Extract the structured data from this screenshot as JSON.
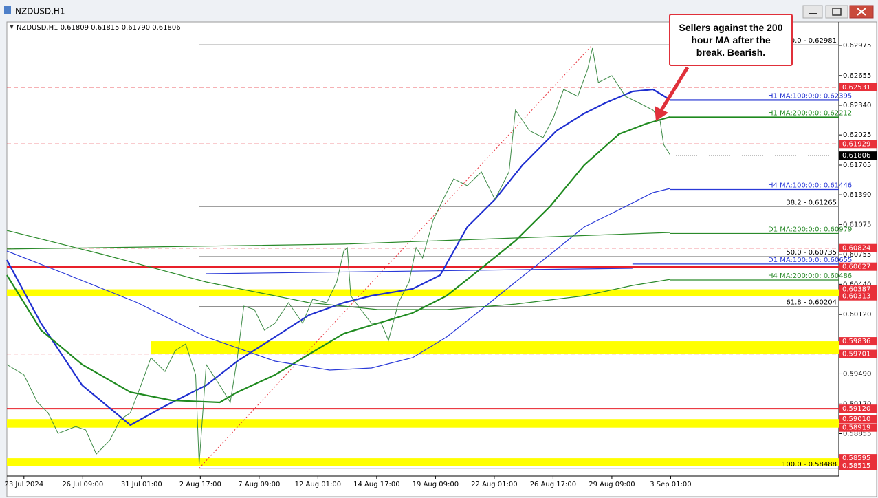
{
  "window": {
    "title": "NZDUSD,H1"
  },
  "chart_data": {
    "type": "line",
    "header": "NZDUSD,H1  0.61809 0.61815 0.61790 0.61806",
    "annotation": "Sellers against the 200 hour MA after the break.  Bearish.",
    "xlim": [
      -0.29,
      13.86
    ],
    "ylim": [
      0.58406,
      0.63223
    ],
    "xticks": [
      {
        "value": 0,
        "label": "23 Jul 2024"
      },
      {
        "value": 1,
        "label": "26 Jul 09:00"
      },
      {
        "value": 2,
        "label": "31 Jul 01:00"
      },
      {
        "value": 3,
        "label": "2 Aug 17:00"
      },
      {
        "value": 4,
        "label": "7 Aug 09:00"
      },
      {
        "value": 5,
        "label": "12 Aug 01:00"
      },
      {
        "value": 6,
        "label": "14 Aug 17:00"
      },
      {
        "value": 7,
        "label": "19 Aug 09:00"
      },
      {
        "value": 8,
        "label": "22 Aug 01:00"
      },
      {
        "value": 9,
        "label": "26 Aug 17:00"
      },
      {
        "value": 10,
        "label": "29 Aug 09:00"
      },
      {
        "value": 11,
        "label": "3 Sep 01:00"
      }
    ],
    "yticks": [
      0.62975,
      0.62655,
      {
        "value": 0.6234,
        "label": "0.62340"
      },
      0.62025,
      0.61705,
      {
        "value": 0.6139,
        "label": "0.61390"
      },
      0.61075,
      0.60755,
      {
        "value": 0.6044,
        "label": "0.60440"
      },
      {
        "value": 0.6012,
        "label": "0.60120"
      },
      {
        "value": 0.5949,
        "label": "0.59490"
      },
      {
        "value": 0.5917,
        "label": "0.59170"
      },
      0.58855
    ],
    "close": {
      "color": "#3d8a46",
      "x": [
        -0.29,
        0,
        0.23,
        0.41,
        0.58,
        0.88,
        1.05,
        1.23,
        1.46,
        1.64,
        1.81,
        1.99,
        2.16,
        2.4,
        2.57,
        2.75,
        2.92,
        2.98,
        3.1,
        3.33,
        3.51,
        3.63,
        3.74,
        3.92,
        4.09,
        4.27,
        4.5,
        4.74,
        4.91,
        5.15,
        5.32,
        5.44,
        5.5,
        5.56,
        5.73,
        5.91,
        6.08,
        6.2,
        6.37,
        6.55,
        6.67,
        6.78,
        6.96,
        7.13,
        7.31,
        7.54,
        7.78,
        8.01,
        8.25,
        8.36,
        8.6,
        8.83,
        9.01,
        9.18,
        9.42,
        9.59,
        9.67,
        9.77,
        10,
        10.23,
        10.47,
        10.7,
        10.82,
        10.88,
        10.99
      ],
      "values": [
        0.59588,
        0.59479,
        0.59187,
        0.59077,
        0.58858,
        0.58931,
        0.58895,
        0.58639,
        0.58785,
        0.59004,
        0.59077,
        0.59369,
        0.59661,
        0.59515,
        0.59734,
        0.59807,
        0.59479,
        0.5853,
        0.59588,
        0.59369,
        0.59187,
        0.59661,
        0.60209,
        0.60172,
        0.59953,
        0.60026,
        0.60245,
        0.60026,
        0.60282,
        0.60245,
        0.60464,
        0.60793,
        0.60829,
        0.60318,
        0.60172,
        0.60026,
        0.60026,
        0.59844,
        0.60245,
        0.60464,
        0.60829,
        0.6072,
        0.61121,
        0.6134,
        0.61559,
        0.61486,
        0.61632,
        0.6134,
        0.61632,
        0.62289,
        0.6207,
        0.61997,
        0.62216,
        0.62508,
        0.62435,
        0.62727,
        0.62946,
        0.62581,
        0.62654,
        0.62435,
        0.62362,
        0.62289,
        0.62179,
        0.61924,
        0.61814
      ]
    },
    "series": [
      {
        "name": "H1 MA:100:0:0: 0.62395",
        "last": 0.62395,
        "color": "#1f2fd0",
        "width": 2.2,
        "x": [
          -0.29,
          0.29,
          0.99,
          1.81,
          2.4,
          3.1,
          3.63,
          4.27,
          4.85,
          5.44,
          5.91,
          6.61,
          7.08,
          7.54,
          8.01,
          8.48,
          9.06,
          9.53,
          9.88,
          10.35,
          10.7,
          10.99
        ],
        "values": [
          0.60698,
          0.60026,
          0.59369,
          0.58946,
          0.5915,
          0.59369,
          0.59625,
          0.5988,
          0.60114,
          0.60245,
          0.60318,
          0.60391,
          0.60537,
          0.61048,
          0.6134,
          0.61705,
          0.6207,
          0.62252,
          0.62362,
          0.62486,
          0.62508,
          0.62398
        ]
      },
      {
        "name": "H1 MA:200:0:0: 0.62212",
        "last": 0.62212,
        "color": "#1f8a1f",
        "width": 2.2,
        "x": [
          -0.29,
          0.29,
          0.99,
          1.81,
          2.51,
          3.33,
          3.63,
          4.27,
          4.85,
          5.44,
          6.02,
          6.61,
          7.19,
          7.78,
          8.36,
          8.95,
          9.53,
          10.12,
          10.58,
          10.99
        ],
        "values": [
          0.60537,
          0.59953,
          0.59588,
          0.59296,
          0.59209,
          0.59187,
          0.59296,
          0.59479,
          0.59698,
          0.59917,
          0.60026,
          0.60136,
          0.60318,
          0.6061,
          0.60902,
          0.61267,
          0.61705,
          0.62033,
          0.62143,
          0.62216
        ]
      },
      {
        "name": "H4 MA:100:0:0: 0.61446",
        "last": 0.61446,
        "color": "#2a3ad8",
        "width": 1.2,
        "x": [
          -0.29,
          0.76,
          1.93,
          3.1,
          4.27,
          5.2,
          5.91,
          6.61,
          7.19,
          7.78,
          8.36,
          8.95,
          9.53,
          10.12,
          10.7,
          10.99
        ],
        "values": [
          0.60793,
          0.60537,
          0.60245,
          0.5988,
          0.59625,
          0.5953,
          0.59552,
          0.59661,
          0.5988,
          0.60172,
          0.60464,
          0.60756,
          0.61048,
          0.6123,
          0.61413,
          0.61457
        ]
      },
      {
        "name": "D1 MA:200:0:0: 0.60979",
        "last": 0.60979,
        "color": "#2a8a2a",
        "width": 1.2,
        "x": [
          -0.29,
          5.44,
          10.99
        ],
        "values": [
          0.60815,
          0.60866,
          0.6099
        ]
      },
      {
        "name": "D1 MA:100:0:0: 0.60655",
        "last": 0.60655,
        "color": "#2a3ad8",
        "width": 1.2,
        "x": [
          3.1,
          10.35
        ],
        "values": [
          0.60552,
          0.6061
        ]
      },
      {
        "name": "H4 MA:200:0:0: 0.60486",
        "last": 0.60486,
        "color": "#2a8a2a",
        "width": 1.2,
        "x": [
          -0.29,
          1.35,
          3.1,
          4.85,
          6.02,
          7.19,
          8.36,
          9.53,
          10.35,
          10.99
        ],
        "values": [
          0.61011,
          0.60756,
          0.60464,
          0.60245,
          0.60172,
          0.60172,
          0.6023,
          0.60318,
          0.60428,
          0.60493
        ]
      }
    ],
    "fib": {
      "from_x": 2.98,
      "to_x": 9.67,
      "color": "#808080",
      "levels": [
        {
          "label": "0.0 - 0.62981",
          "price": 0.62981
        },
        {
          "label": "38.2 - 0.61265",
          "price": 0.61265
        },
        {
          "label": "50.0 - 0.60735",
          "price": 0.60735
        },
        {
          "label": "61.8 - 0.60204",
          "price": 0.60204
        },
        {
          "label": "100.0 - 0.58488",
          "price": 0.58488
        }
      ]
    },
    "levels": [
      {
        "price": 0.62531,
        "color": "#e8303a",
        "dash": true,
        "width": 1
      },
      {
        "price": 0.61929,
        "color": "#e8303a",
        "dash": true,
        "width": 1
      },
      {
        "price": 0.60824,
        "color": "#e8303a",
        "dash": true,
        "width": 1
      },
      {
        "price": 0.60627,
        "color": "#e8202a",
        "dash": false,
        "width": 3
      },
      {
        "price": {
          "value": 0.5912,
          "label": "0.59120"
        },
        "color": "#e8202a",
        "dash": false,
        "width": 2
      }
    ],
    "zones": [
      {
        "high": 0.60387,
        "low": 0.60313,
        "from": -0.29,
        "color": "#ffff00",
        "dash_low": false
      },
      {
        "high": 0.59836,
        "low": 0.59701,
        "from": 2.16,
        "color": "#ffff00",
        "dash_low": true
      },
      {
        "high": {
          "value": 0.5901,
          "label": "0.59010"
        },
        "low": 0.58919,
        "from": -0.29,
        "color": "#ffff00",
        "dash_low": false
      },
      {
        "high": 0.58595,
        "low": 0.58515,
        "from": -0.29,
        "color": "#ffff00",
        "dash_low": false
      }
    ],
    "last_price": 0.61806
  }
}
